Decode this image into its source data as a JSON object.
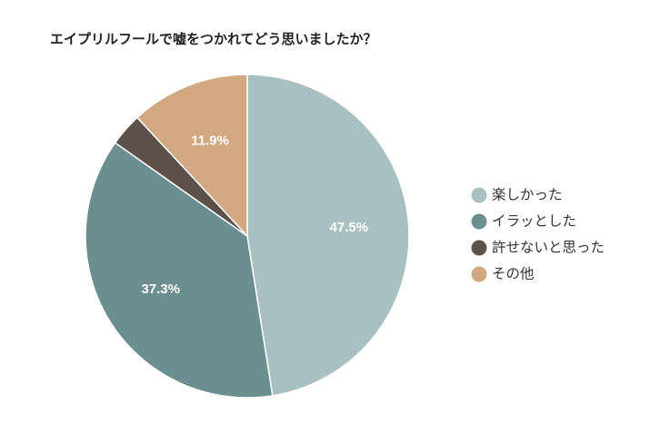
{
  "chart_data": {
    "type": "pie",
    "title": "エイプリルフールで嘘をつかれてどう思いましたか？",
    "categories": [
      "楽しかった",
      "イラッとした",
      "許せないと思った",
      "その他"
    ],
    "values": [
      47.5,
      37.3,
      3.3,
      11.9
    ],
    "labels": [
      "47.5%",
      "37.3%",
      "",
      "11.9%"
    ],
    "colors": [
      "#a8c0c1",
      "#6b8e91",
      "#5c5048",
      "#d1a881"
    ],
    "legend_position": "right",
    "start_angle": "12 o'clock",
    "direction": "clockwise"
  }
}
